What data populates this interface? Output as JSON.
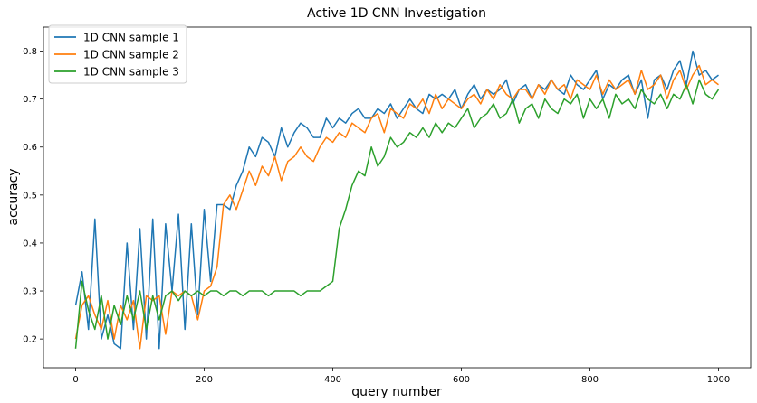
{
  "chart_data": {
    "type": "line",
    "title": "Active 1D CNN Investigation",
    "xlabel": "query number",
    "ylabel": "accuracy",
    "xlim": [
      -50,
      1050
    ],
    "ylim": [
      0.14,
      0.85
    ],
    "xticks": [
      0,
      200,
      400,
      600,
      800,
      1000
    ],
    "yticks": [
      0.2,
      0.3,
      0.4,
      0.5,
      0.6,
      0.7,
      0.8
    ],
    "grid": false,
    "legend_position": "top-left",
    "x_sampling": {
      "start": 0,
      "step": 10,
      "count": 101
    },
    "series": [
      {
        "name": "1D CNN sample 1",
        "color": "#1f77b4",
        "values": [
          0.27,
          0.34,
          0.22,
          0.45,
          0.2,
          0.25,
          0.19,
          0.18,
          0.4,
          0.22,
          0.43,
          0.2,
          0.45,
          0.18,
          0.44,
          0.3,
          0.46,
          0.22,
          0.44,
          0.25,
          0.47,
          0.32,
          0.48,
          0.48,
          0.47,
          0.52,
          0.55,
          0.6,
          0.58,
          0.62,
          0.61,
          0.58,
          0.64,
          0.6,
          0.63,
          0.65,
          0.64,
          0.62,
          0.62,
          0.66,
          0.64,
          0.66,
          0.65,
          0.67,
          0.68,
          0.66,
          0.66,
          0.68,
          0.67,
          0.69,
          0.66,
          0.68,
          0.7,
          0.68,
          0.67,
          0.71,
          0.7,
          0.71,
          0.7,
          0.72,
          0.68,
          0.71,
          0.73,
          0.7,
          0.72,
          0.71,
          0.72,
          0.74,
          0.69,
          0.72,
          0.73,
          0.7,
          0.73,
          0.72,
          0.74,
          0.72,
          0.71,
          0.75,
          0.73,
          0.72,
          0.74,
          0.76,
          0.7,
          0.73,
          0.72,
          0.74,
          0.75,
          0.71,
          0.74,
          0.66,
          0.74,
          0.75,
          0.72,
          0.76,
          0.78,
          0.73,
          0.8,
          0.75,
          0.76,
          0.74,
          0.75
        ]
      },
      {
        "name": "1D CNN sample 2",
        "color": "#ff7f0e",
        "values": [
          0.2,
          0.27,
          0.29,
          0.25,
          0.22,
          0.28,
          0.2,
          0.27,
          0.24,
          0.28,
          0.18,
          0.29,
          0.28,
          0.29,
          0.21,
          0.3,
          0.29,
          0.3,
          0.29,
          0.24,
          0.3,
          0.31,
          0.35,
          0.48,
          0.5,
          0.47,
          0.51,
          0.55,
          0.52,
          0.56,
          0.54,
          0.58,
          0.53,
          0.57,
          0.58,
          0.6,
          0.58,
          0.57,
          0.6,
          0.62,
          0.61,
          0.63,
          0.62,
          0.65,
          0.64,
          0.63,
          0.66,
          0.67,
          0.63,
          0.68,
          0.67,
          0.66,
          0.69,
          0.68,
          0.7,
          0.67,
          0.71,
          0.68,
          0.7,
          0.69,
          0.68,
          0.7,
          0.71,
          0.69,
          0.72,
          0.7,
          0.73,
          0.71,
          0.7,
          0.72,
          0.72,
          0.7,
          0.73,
          0.71,
          0.74,
          0.72,
          0.73,
          0.7,
          0.74,
          0.73,
          0.72,
          0.75,
          0.71,
          0.74,
          0.72,
          0.73,
          0.74,
          0.71,
          0.76,
          0.72,
          0.73,
          0.75,
          0.7,
          0.74,
          0.76,
          0.72,
          0.75,
          0.77,
          0.73,
          0.74,
          0.73
        ]
      },
      {
        "name": "1D CNN sample 3",
        "color": "#2ca02c",
        "values": [
          0.18,
          0.32,
          0.26,
          0.22,
          0.29,
          0.2,
          0.27,
          0.23,
          0.29,
          0.24,
          0.3,
          0.22,
          0.29,
          0.24,
          0.29,
          0.3,
          0.28,
          0.3,
          0.29,
          0.3,
          0.29,
          0.3,
          0.3,
          0.29,
          0.3,
          0.3,
          0.29,
          0.3,
          0.3,
          0.3,
          0.29,
          0.3,
          0.3,
          0.3,
          0.3,
          0.29,
          0.3,
          0.3,
          0.3,
          0.31,
          0.32,
          0.43,
          0.47,
          0.52,
          0.55,
          0.54,
          0.6,
          0.56,
          0.58,
          0.62,
          0.6,
          0.61,
          0.63,
          0.62,
          0.64,
          0.62,
          0.65,
          0.63,
          0.65,
          0.64,
          0.66,
          0.68,
          0.64,
          0.66,
          0.67,
          0.69,
          0.66,
          0.67,
          0.7,
          0.65,
          0.68,
          0.69,
          0.66,
          0.7,
          0.68,
          0.67,
          0.7,
          0.69,
          0.71,
          0.66,
          0.7,
          0.68,
          0.7,
          0.66,
          0.71,
          0.69,
          0.7,
          0.68,
          0.72,
          0.7,
          0.69,
          0.71,
          0.68,
          0.71,
          0.7,
          0.73,
          0.69,
          0.74,
          0.71,
          0.7,
          0.72
        ]
      }
    ]
  }
}
